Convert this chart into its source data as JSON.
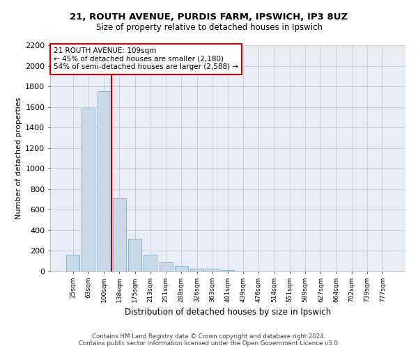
{
  "title_line1": "21, ROUTH AVENUE, PURDIS FARM, IPSWICH, IP3 8UZ",
  "title_line2": "Size of property relative to detached houses in Ipswich",
  "xlabel": "Distribution of detached houses by size in Ipswich",
  "ylabel": "Number of detached properties",
  "footer_line1": "Contains HM Land Registry data © Crown copyright and database right 2024.",
  "footer_line2": "Contains public sector information licensed under the Open Government Licence v3.0.",
  "annotation_line1": "21 ROUTH AVENUE: 109sqm",
  "annotation_line2": "← 45% of detached houses are smaller (2,180)",
  "annotation_line3": "54% of semi-detached houses are larger (2,588) →",
  "bar_color": "#c9d9e8",
  "bar_edge_color": "#7aaaca",
  "vline_color": "#cc0000",
  "vline_x_index": 2,
  "categories": [
    "25sqm",
    "63sqm",
    "100sqm",
    "138sqm",
    "175sqm",
    "213sqm",
    "251sqm",
    "288sqm",
    "326sqm",
    "363sqm",
    "401sqm",
    "439sqm",
    "476sqm",
    "514sqm",
    "551sqm",
    "589sqm",
    "627sqm",
    "664sqm",
    "702sqm",
    "739sqm",
    "777sqm"
  ],
  "values": [
    160,
    1585,
    1755,
    710,
    315,
    160,
    90,
    55,
    30,
    25,
    15,
    0,
    0,
    0,
    0,
    0,
    0,
    0,
    0,
    0,
    0
  ],
  "ylim": [
    0,
    2200
  ],
  "yticks": [
    0,
    200,
    400,
    600,
    800,
    1000,
    1200,
    1400,
    1600,
    1800,
    2000,
    2200
  ],
  "grid_color": "#c8d0dc",
  "background_color": "#e8edf5"
}
